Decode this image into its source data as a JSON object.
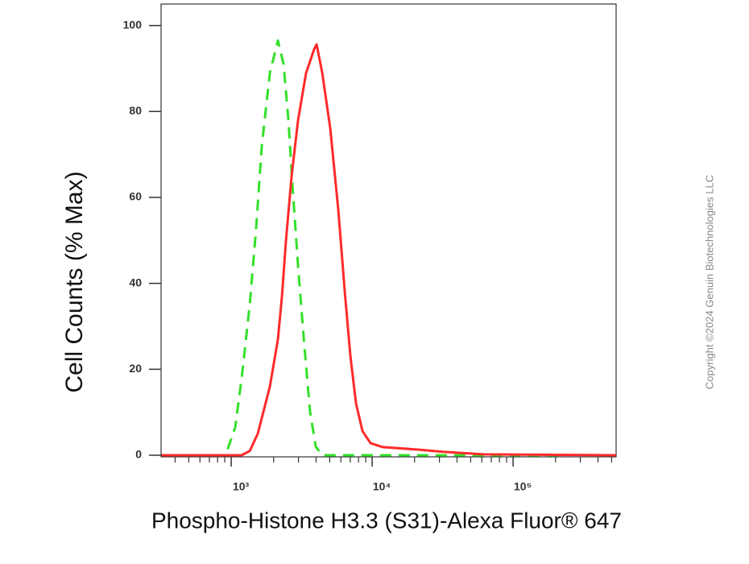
{
  "chart_data": {
    "type": "line",
    "x_label": "Phospho-Histone H3.3 (S31)-Alexa Fluor® 647",
    "y_label": "Cell Counts (% Max)",
    "copyright": "Copyright ©2024 Genuin Biotechnologies LLC",
    "xscale": "log",
    "xlim": [
      318,
      538000
    ],
    "ylim": [
      0,
      105
    ],
    "xticks": [
      {
        "value": 1000,
        "label": "10³"
      },
      {
        "value": 10000,
        "label": "10⁴"
      },
      {
        "value": 100000,
        "label": "10⁵"
      }
    ],
    "xminorticks": [
      400,
      500,
      600,
      700,
      800,
      900,
      2000,
      3000,
      4000,
      5000,
      6000,
      7000,
      8000,
      9000,
      20000,
      30000,
      40000,
      50000,
      60000,
      70000,
      80000,
      90000,
      200000,
      300000,
      400000,
      500000
    ],
    "yticks": [
      0,
      20,
      40,
      60,
      80,
      100
    ],
    "series": [
      {
        "color": "#33e02a",
        "dashed": true,
        "x": [
          748,
          912,
          1068,
          1187,
          1353,
          1503,
          1649,
          1881,
          2145,
          2352,
          2545,
          2719,
          2981,
          3311,
          3631,
          3981,
          4423,
          229000
        ],
        "values": [
          0,
          0,
          6.5,
          18,
          35,
          53,
          72,
          89,
          96.5,
          91,
          78,
          63,
          44,
          25,
          10,
          2,
          0,
          0
        ]
      },
      {
        "color": "#ff2a2a",
        "dashed": false,
        "x": [
          320,
          1187,
          1353,
          1544,
          1881,
          2145,
          2291,
          2447,
          2683,
          2981,
          3400,
          3878,
          4034,
          4423,
          5046,
          5754,
          6393,
          7011,
          7689,
          8539,
          9740,
          11870,
          21450,
          31840,
          61460,
          538000
        ],
        "values": [
          0,
          0,
          1,
          5,
          16,
          27,
          37,
          50,
          65,
          78,
          89,
          94.5,
          95.6,
          89,
          76,
          57,
          38,
          23,
          12,
          5.6,
          2.8,
          1.9,
          1.3,
          0.8,
          0.2,
          0
        ]
      }
    ]
  }
}
